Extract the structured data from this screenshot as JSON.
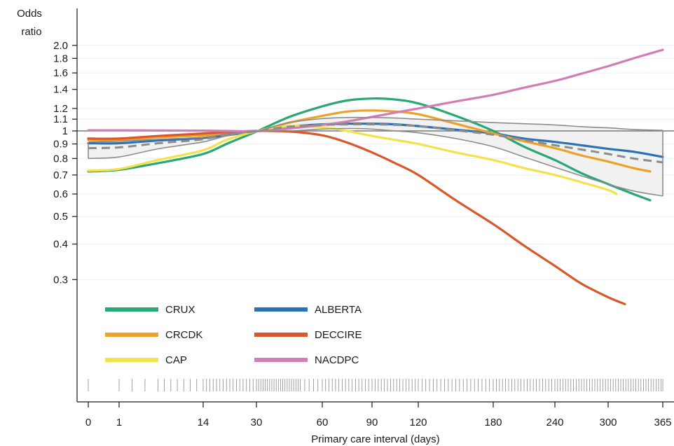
{
  "chart_data": {
    "type": "line",
    "xlabel": "Primary care interval (days)",
    "ylabel_line1": "Odds",
    "ylabel_line2": "ratio",
    "y_scale": "log",
    "x_ticks": [
      {
        "value": 0,
        "label": "0"
      },
      {
        "value": 1,
        "label": "1"
      },
      {
        "value": 14,
        "label": "14"
      },
      {
        "value": 30,
        "label": "30"
      },
      {
        "value": 60,
        "label": "60"
      },
      {
        "value": 90,
        "label": "90"
      },
      {
        "value": 120,
        "label": "120"
      },
      {
        "value": 180,
        "label": "180"
      },
      {
        "value": 240,
        "label": "240"
      },
      {
        "value": 300,
        "label": "300"
      },
      {
        "value": 365,
        "label": "365"
      }
    ],
    "y_ticks": [
      {
        "value": 0.3,
        "label": "0.3"
      },
      {
        "value": 0.4,
        "label": "0.4"
      },
      {
        "value": 0.5,
        "label": "0.5"
      },
      {
        "value": 0.6,
        "label": "0.6"
      },
      {
        "value": 0.7,
        "label": "0.7"
      },
      {
        "value": 0.8,
        "label": "0.8"
      },
      {
        "value": 0.9,
        "label": "0.9"
      },
      {
        "value": 1.0,
        "label": "1"
      },
      {
        "value": 1.1,
        "label": "1.1"
      },
      {
        "value": 1.2,
        "label": "1.2"
      },
      {
        "value": 1.4,
        "label": "1.4"
      },
      {
        "value": 1.6,
        "label": "1.6"
      },
      {
        "value": 1.8,
        "label": "1.8"
      },
      {
        "value": 2.0,
        "label": "2.0"
      }
    ],
    "ylim": [
      0.2,
      2.15
    ],
    "reference_line": 1.0,
    "grid": "horizontal-light",
    "legend_placement": "bottom-left-inside",
    "series": [
      {
        "name": "CRUX",
        "color": "#2aa774",
        "x": [
          0,
          1,
          7,
          14,
          21,
          30,
          45,
          60,
          75,
          90,
          105,
          120,
          150,
          180,
          210,
          240,
          270,
          300,
          330,
          350
        ],
        "y": [
          0.72,
          0.73,
          0.77,
          0.83,
          0.9,
          0.995,
          1.12,
          1.22,
          1.28,
          1.3,
          1.29,
          1.25,
          1.13,
          1.0,
          0.88,
          0.79,
          0.71,
          0.65,
          0.6,
          0.57
        ]
      },
      {
        "name": "ALBERTA",
        "color": "#2a72b5",
        "x": [
          0,
          1,
          7,
          14,
          21,
          30,
          45,
          60,
          75,
          90,
          105,
          120,
          150,
          180,
          210,
          240,
          270,
          300,
          330,
          365
        ],
        "y": [
          0.905,
          0.905,
          0.925,
          0.945,
          0.965,
          0.998,
          1.035,
          1.055,
          1.06,
          1.06,
          1.055,
          1.04,
          1.01,
          0.98,
          0.94,
          0.915,
          0.89,
          0.865,
          0.845,
          0.81
        ]
      },
      {
        "name": "CRCDK",
        "color": "#eea127",
        "x": [
          0,
          1,
          7,
          14,
          21,
          30,
          45,
          60,
          75,
          90,
          105,
          120,
          150,
          180,
          210,
          240,
          270,
          300,
          330,
          350
        ],
        "y": [
          0.93,
          0.93,
          0.95,
          0.965,
          0.98,
          0.998,
          1.07,
          1.13,
          1.17,
          1.18,
          1.17,
          1.145,
          1.06,
          0.98,
          0.92,
          0.87,
          0.82,
          0.78,
          0.74,
          0.72
        ]
      },
      {
        "name": "DECCIRE",
        "color": "#d9572a",
        "x": [
          0,
          1,
          7,
          14,
          21,
          30,
          45,
          60,
          75,
          90,
          105,
          120,
          150,
          180,
          210,
          240,
          270,
          300,
          320
        ],
        "y": [
          0.94,
          0.94,
          0.96,
          0.98,
          0.99,
          1.0,
          0.995,
          0.965,
          0.91,
          0.84,
          0.77,
          0.7,
          0.57,
          0.47,
          0.395,
          0.335,
          0.29,
          0.26,
          0.246
        ]
      },
      {
        "name": "CAP",
        "color": "#f2e34a",
        "x": [
          0,
          1,
          7,
          14,
          21,
          30,
          45,
          60,
          75,
          90,
          105,
          120,
          150,
          180,
          210,
          240,
          270,
          300,
          310
        ],
        "y": [
          0.725,
          0.735,
          0.79,
          0.855,
          0.93,
          0.998,
          1.04,
          1.03,
          1.0,
          0.96,
          0.93,
          0.9,
          0.84,
          0.79,
          0.74,
          0.7,
          0.66,
          0.62,
          0.6
        ]
      },
      {
        "name": "NACDPC",
        "color": "#d27cb8",
        "x": [
          0,
          1,
          7,
          14,
          21,
          30,
          45,
          60,
          75,
          90,
          105,
          120,
          150,
          180,
          210,
          240,
          270,
          300,
          330,
          365
        ],
        "y": [
          1.005,
          1.005,
          1.004,
          1.002,
          1.0,
          0.998,
          1.02,
          1.05,
          1.08,
          1.12,
          1.16,
          1.2,
          1.27,
          1.34,
          1.42,
          1.5,
          1.59,
          1.69,
          1.8,
          1.93
        ]
      }
    ],
    "pooled": {
      "color": "#8c8c8c",
      "x": [
        0,
        1,
        7,
        14,
        21,
        30,
        45,
        60,
        75,
        90,
        105,
        120,
        150,
        180,
        210,
        240,
        270,
        300,
        330,
        365
      ],
      "estimate": [
        0.87,
        0.875,
        0.905,
        0.935,
        0.97,
        0.998,
        1.035,
        1.05,
        1.055,
        1.055,
        1.05,
        1.04,
        1.005,
        0.97,
        0.93,
        0.89,
        0.86,
        0.83,
        0.8,
        0.775
      ],
      "upper": [
        0.915,
        0.92,
        0.935,
        0.95,
        0.975,
        0.998,
        1.07,
        1.105,
        1.115,
        1.115,
        1.11,
        1.1,
        1.085,
        1.07,
        1.06,
        1.05,
        1.035,
        1.025,
        1.012,
        1.005
      ],
      "lower": [
        0.8,
        0.81,
        0.865,
        0.915,
        0.96,
        0.998,
        1.0,
        1.015,
        1.02,
        1.015,
        1.0,
        0.985,
        0.94,
        0.88,
        0.81,
        0.745,
        0.695,
        0.65,
        0.615,
        0.59
      ]
    },
    "rug_x": [
      0,
      1,
      3,
      5,
      7,
      8,
      9,
      10,
      11,
      12,
      13,
      14,
      15,
      16,
      17,
      18,
      19,
      20,
      21,
      22,
      23,
      24,
      25,
      26,
      27,
      28,
      29,
      30,
      31,
      32,
      33,
      34,
      35,
      36,
      37,
      38,
      39,
      40,
      41,
      42,
      43,
      44,
      45,
      46,
      47,
      48,
      49,
      50,
      52,
      54,
      56,
      58,
      60,
      62,
      64,
      66,
      68,
      70,
      72,
      74,
      76,
      78,
      80,
      82,
      84,
      86,
      88,
      90,
      92,
      94,
      96,
      98,
      100,
      102,
      104,
      106,
      108,
      110,
      112,
      114,
      116,
      118,
      120,
      123,
      126,
      129,
      132,
      135,
      138,
      141,
      144,
      147,
      150,
      153,
      156,
      159,
      162,
      165,
      168,
      171,
      174,
      177,
      180,
      183,
      186,
      189,
      192,
      195,
      198,
      201,
      204,
      207,
      210,
      213,
      216,
      219,
      222,
      225,
      228,
      231,
      234,
      237,
      240,
      243,
      246,
      249,
      252,
      255,
      258,
      261,
      264,
      267,
      270,
      273,
      276,
      279,
      282,
      285,
      288,
      291,
      294,
      297,
      300,
      303,
      306,
      309,
      312,
      315,
      318,
      321,
      324,
      327,
      330,
      333,
      336,
      339,
      342,
      345,
      348,
      351,
      354,
      357,
      360,
      363,
      365
    ]
  },
  "legend": {
    "items": [
      {
        "name": "CRUX",
        "color": "#2aa774"
      },
      {
        "name": "ALBERTA",
        "color": "#2a72b5"
      },
      {
        "name": "CRCDK",
        "color": "#eea127"
      },
      {
        "name": "DECCIRE",
        "color": "#d9572a"
      },
      {
        "name": "CAP",
        "color": "#f2e34a"
      },
      {
        "name": "NACDPC",
        "color": "#d27cb8"
      }
    ]
  }
}
